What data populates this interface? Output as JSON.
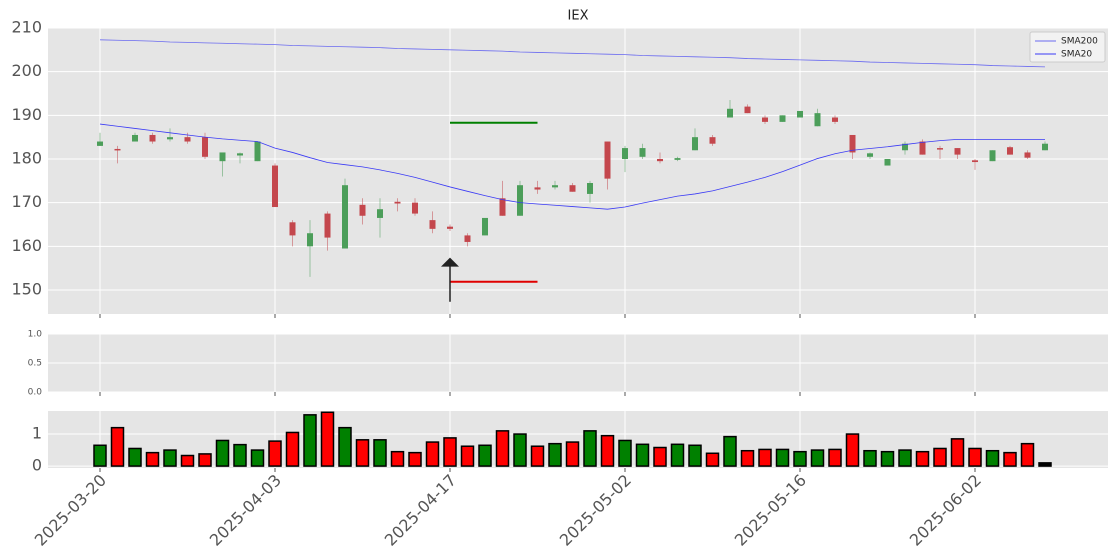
{
  "chart_data": {
    "type": "candlestick",
    "title": "IEX",
    "categories": [
      "2025-03-20",
      "2025-03-21",
      "2025-03-24",
      "2025-03-25",
      "2025-03-26",
      "2025-03-27",
      "2025-03-28",
      "2025-03-31",
      "2025-04-01",
      "2025-04-02",
      "2025-04-03",
      "2025-04-04",
      "2025-04-07",
      "2025-04-08",
      "2025-04-09",
      "2025-04-10",
      "2025-04-11",
      "2025-04-14",
      "2025-04-15",
      "2025-04-16",
      "2025-04-17",
      "2025-04-21",
      "2025-04-22",
      "2025-04-23",
      "2025-04-24",
      "2025-04-25",
      "2025-04-28",
      "2025-04-29",
      "2025-04-30",
      "2025-05-01",
      "2025-05-02",
      "2025-05-05",
      "2025-05-06",
      "2025-05-07",
      "2025-05-08",
      "2025-05-09",
      "2025-05-12",
      "2025-05-13",
      "2025-05-14",
      "2025-05-15",
      "2025-05-16",
      "2025-05-19",
      "2025-05-20",
      "2025-05-21",
      "2025-05-22",
      "2025-05-23",
      "2025-05-27",
      "2025-05-28",
      "2025-05-29",
      "2025-05-30",
      "2025-06-02",
      "2025-06-03",
      "2025-06-04",
      "2025-06-05",
      "2025-06-06"
    ],
    "open": [
      183,
      182.3,
      184,
      185.5,
      184.5,
      185,
      185,
      179.5,
      180.8,
      179.5,
      178.5,
      165.5,
      160,
      167.5,
      159.5,
      169.5,
      166.5,
      170.2,
      170,
      166,
      164.5,
      162.5,
      162.5,
      171,
      167,
      173.5,
      173.5,
      174,
      172,
      184,
      180,
      180.5,
      180,
      179.8,
      182,
      185,
      189.5,
      192,
      189.5,
      188.5,
      189.5,
      187.5,
      189.5,
      185.5,
      180.5,
      178.5,
      182,
      184,
      182.5,
      182.5,
      179.7,
      179.5,
      182.7,
      181.5,
      182
    ],
    "high": [
      186,
      183,
      186,
      186,
      187,
      186,
      186,
      181.5,
      181.5,
      184,
      179,
      166,
      166,
      168,
      175.5,
      171,
      171,
      171,
      171,
      168,
      165,
      163,
      166.5,
      175,
      175,
      175,
      175,
      174.5,
      175,
      184,
      183,
      183.5,
      181.5,
      180.5,
      187,
      185.5,
      193.5,
      192.5,
      190,
      190,
      191,
      191.5,
      190,
      185.5,
      181.5,
      180,
      184,
      184.5,
      183,
      182.5,
      180,
      182,
      183,
      182,
      184
    ],
    "low": [
      183,
      179,
      184,
      183.5,
      184,
      183.5,
      180,
      176,
      179,
      179.5,
      169,
      160,
      153,
      159,
      159.5,
      165,
      162,
      168,
      167,
      163,
      163.5,
      160,
      162.5,
      167,
      167,
      172,
      173,
      172.5,
      170,
      173,
      177,
      180,
      179,
      179.5,
      182,
      183,
      189.5,
      190.5,
      188,
      188.5,
      189.5,
      187.5,
      188,
      180,
      180,
      178.5,
      181,
      181,
      180,
      180,
      177.5,
      179.5,
      181,
      180,
      182
    ],
    "close": [
      184,
      182,
      185.5,
      184,
      185,
      184,
      180.5,
      181.5,
      181.3,
      184,
      169,
      162.5,
      163,
      162,
      174,
      167,
      168.5,
      169.8,
      167.5,
      164,
      164,
      161,
      166.5,
      167,
      174,
      173,
      174,
      172.5,
      174.5,
      175.5,
      182.5,
      182.5,
      179.5,
      180.2,
      185,
      183.5,
      191.5,
      190.5,
      188.5,
      190,
      191,
      190.5,
      188.5,
      181.5,
      181.3,
      180,
      183.5,
      181,
      182.3,
      181,
      179.3,
      182,
      181,
      180.3,
      183.5
    ],
    "up_color": "#4c9e5a",
    "down_color": "#c4474d",
    "series": [
      {
        "name": "SMA200",
        "color": "#6a6af0",
        "values": [
          207.3,
          207.2,
          207.1,
          207.0,
          206.8,
          206.7,
          206.6,
          206.5,
          206.4,
          206.3,
          206.2,
          206.0,
          205.9,
          205.8,
          205.7,
          205.6,
          205.5,
          205.3,
          205.2,
          205.1,
          205.0,
          204.9,
          204.8,
          204.7,
          204.5,
          204.4,
          204.3,
          204.2,
          204.1,
          204.0,
          203.9,
          203.7,
          203.6,
          203.5,
          203.4,
          203.3,
          203.2,
          203.0,
          202.9,
          202.8,
          202.7,
          202.6,
          202.5,
          202.4,
          202.2,
          202.1,
          202.0,
          201.9,
          201.8,
          201.7,
          201.6,
          201.4,
          201.3,
          201.2,
          201.1
        ]
      },
      {
        "name": "SMA20",
        "color": "#3a3af5",
        "values": [
          188,
          187.5,
          187,
          186.5,
          186,
          185.5,
          185,
          184.6,
          184.3,
          184,
          182.5,
          181.5,
          180.3,
          179.2,
          178.7,
          178.2,
          177.5,
          176.7,
          175.8,
          174.7,
          173.6,
          172.6,
          171.6,
          170.7,
          170,
          169.7,
          169.4,
          169.1,
          168.8,
          168.5,
          169,
          169.9,
          170.7,
          171.5,
          172,
          172.7,
          173.7,
          174.7,
          175.8,
          177.1,
          178.6,
          180.1,
          181.2,
          182,
          182.4,
          182.8,
          183.3,
          183.8,
          184.2,
          184.5,
          184.5,
          184.5,
          184.5,
          184.5,
          184.5
        ]
      }
    ],
    "ylim": [
      144.5,
      210
    ],
    "yticks": [
      150,
      160,
      170,
      180,
      190,
      200,
      210
    ],
    "xticks": [
      "2025-03-20",
      "2025-04-03",
      "2025-04-17",
      "2025-05-02",
      "2025-05-16",
      "2025-06-02"
    ],
    "grid": true,
    "legend": "upper right",
    "levels": [
      {
        "value": 188.3,
        "x": [
          "2025-04-17",
          "2025-04-25"
        ],
        "color": "#008000"
      },
      {
        "value": 151.9,
        "x": [
          "2025-04-17",
          "2025-04-25"
        ],
        "color": "#e00000"
      }
    ],
    "arrow": {
      "x": "2025-04-17",
      "y": [
        147.3,
        157.4
      ],
      "color": "#222222"
    },
    "panel2": {
      "ylim": [
        0,
        1
      ],
      "yticks": [
        {
          "value": 0,
          "label": "0.0"
        },
        0.5,
        {
          "value": 1,
          "label": "1.0"
        }
      ]
    },
    "volume": {
      "values": [
        0.65,
        1.2,
        0.55,
        0.42,
        0.5,
        0.33,
        0.38,
        0.8,
        0.67,
        0.5,
        0.78,
        1.05,
        1.6,
        1.68,
        1.2,
        0.82,
        0.82,
        0.45,
        0.42,
        0.75,
        0.88,
        0.62,
        0.65,
        1.1,
        1.0,
        0.62,
        0.7,
        0.75,
        1.1,
        0.95,
        0.8,
        0.68,
        0.58,
        0.68,
        0.65,
        0.4,
        0.92,
        0.48,
        0.52,
        0.52,
        0.45,
        0.5,
        0.52,
        1.0,
        0.48,
        0.45,
        0.5,
        0.45,
        0.55,
        0.85,
        0.55,
        0.48,
        0.42,
        0.7,
        0.1
      ],
      "colors": [
        "#008000",
        "#ff0000",
        "#008000",
        "#ff0000",
        "#008000",
        "#ff0000",
        "#ff0000",
        "#008000",
        "#008000",
        "#008000",
        "#ff0000",
        "#ff0000",
        "#008000",
        "#ff0000",
        "#008000",
        "#ff0000",
        "#008000",
        "#ff0000",
        "#ff0000",
        "#ff0000",
        "#ff0000",
        "#ff0000",
        "#008000",
        "#ff0000",
        "#008000",
        "#ff0000",
        "#008000",
        "#ff0000",
        "#008000",
        "#ff0000",
        "#008000",
        "#008000",
        "#ff0000",
        "#008000",
        "#008000",
        "#ff0000",
        "#008000",
        "#ff0000",
        "#ff0000",
        "#008000",
        "#008000",
        "#008000",
        "#ff0000",
        "#ff0000",
        "#008000",
        "#008000",
        "#008000",
        "#ff0000",
        "#ff0000",
        "#ff0000",
        "#ff0000",
        "#008000",
        "#ff0000",
        "#ff0000",
        "#000000"
      ],
      "ylim": [
        -0.06,
        1.72
      ],
      "yticks": [
        0,
        1
      ]
    }
  }
}
